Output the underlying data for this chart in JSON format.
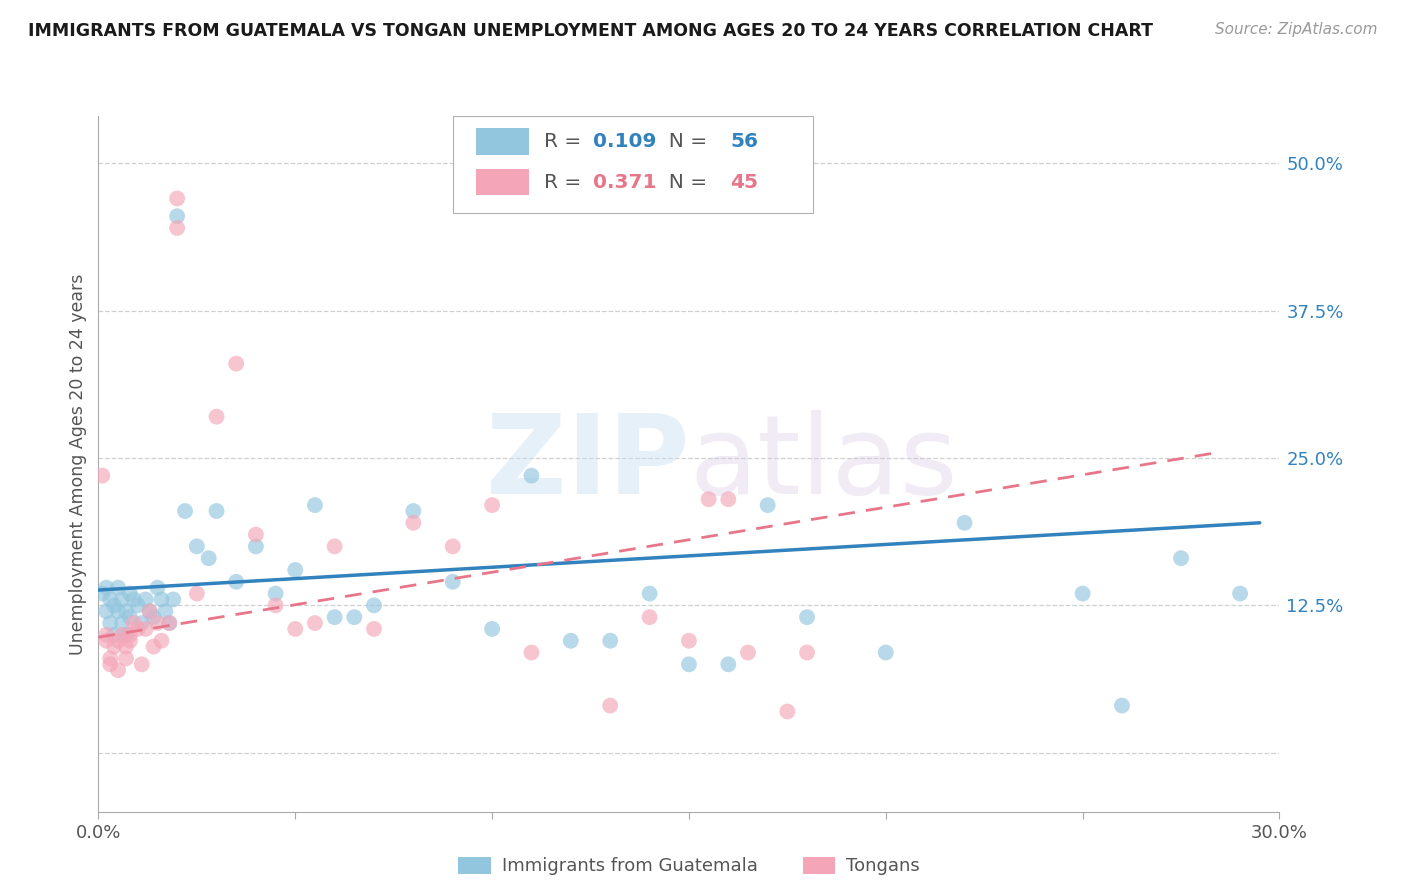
{
  "title": "IMMIGRANTS FROM GUATEMALA VS TONGAN UNEMPLOYMENT AMONG AGES 20 TO 24 YEARS CORRELATION CHART",
  "source": "Source: ZipAtlas.com",
  "ylabel": "Unemployment Among Ages 20 to 24 years",
  "xlim": [
    0.0,
    0.3
  ],
  "ylim": [
    -0.05,
    0.54
  ],
  "x_ticks": [
    0.0,
    0.05,
    0.1,
    0.15,
    0.2,
    0.25,
    0.3
  ],
  "y_ticks_right": [
    0.0,
    0.125,
    0.25,
    0.375,
    0.5
  ],
  "y_tick_labels_right": [
    "",
    "12.5%",
    "25.0%",
    "37.5%",
    "50.0%"
  ],
  "blue_color": "#92c5de",
  "pink_color": "#f4a6b8",
  "blue_line_color": "#3182bd",
  "pink_line_color": "#e8768a",
  "legend_label_blue": "Immigrants from Guatemala",
  "legend_label_pink": "Tongans",
  "R_blue": 0.109,
  "N_blue": 56,
  "R_pink": 0.371,
  "N_pink": 45,
  "watermark_ZIP": "ZIP",
  "watermark_atlas": "atlas",
  "blue_scatter_x": [
    0.001,
    0.002,
    0.002,
    0.003,
    0.003,
    0.004,
    0.004,
    0.005,
    0.005,
    0.006,
    0.006,
    0.007,
    0.007,
    0.008,
    0.008,
    0.009,
    0.01,
    0.011,
    0.012,
    0.013,
    0.014,
    0.015,
    0.016,
    0.017,
    0.018,
    0.019,
    0.02,
    0.022,
    0.025,
    0.028,
    0.03,
    0.035,
    0.04,
    0.045,
    0.05,
    0.055,
    0.06,
    0.065,
    0.07,
    0.08,
    0.09,
    0.1,
    0.11,
    0.12,
    0.13,
    0.14,
    0.15,
    0.16,
    0.17,
    0.18,
    0.2,
    0.22,
    0.25,
    0.26,
    0.275,
    0.29
  ],
  "blue_scatter_y": [
    0.135,
    0.12,
    0.14,
    0.13,
    0.11,
    0.125,
    0.1,
    0.14,
    0.12,
    0.13,
    0.11,
    0.12,
    0.1,
    0.135,
    0.115,
    0.13,
    0.125,
    0.11,
    0.13,
    0.12,
    0.115,
    0.14,
    0.13,
    0.12,
    0.11,
    0.13,
    0.455,
    0.205,
    0.175,
    0.165,
    0.205,
    0.145,
    0.175,
    0.135,
    0.155,
    0.21,
    0.115,
    0.115,
    0.125,
    0.205,
    0.145,
    0.105,
    0.235,
    0.095,
    0.095,
    0.135,
    0.075,
    0.075,
    0.21,
    0.115,
    0.085,
    0.195,
    0.135,
    0.04,
    0.165,
    0.135
  ],
  "pink_scatter_x": [
    0.001,
    0.002,
    0.002,
    0.003,
    0.003,
    0.004,
    0.005,
    0.005,
    0.006,
    0.007,
    0.007,
    0.008,
    0.008,
    0.009,
    0.01,
    0.011,
    0.012,
    0.013,
    0.014,
    0.015,
    0.016,
    0.018,
    0.02,
    0.02,
    0.025,
    0.03,
    0.035,
    0.04,
    0.045,
    0.05,
    0.055,
    0.06,
    0.07,
    0.08,
    0.09,
    0.1,
    0.11,
    0.13,
    0.14,
    0.15,
    0.155,
    0.16,
    0.165,
    0.175,
    0.18
  ],
  "pink_scatter_y": [
    0.235,
    0.1,
    0.095,
    0.08,
    0.075,
    0.09,
    0.095,
    0.07,
    0.1,
    0.09,
    0.08,
    0.1,
    0.095,
    0.11,
    0.105,
    0.075,
    0.105,
    0.12,
    0.09,
    0.11,
    0.095,
    0.11,
    0.445,
    0.47,
    0.135,
    0.285,
    0.33,
    0.185,
    0.125,
    0.105,
    0.11,
    0.175,
    0.105,
    0.195,
    0.175,
    0.21,
    0.085,
    0.04,
    0.115,
    0.095,
    0.215,
    0.215,
    0.085,
    0.035,
    0.085
  ],
  "blue_trend_x": [
    0.0,
    0.295
  ],
  "blue_trend_y": [
    0.138,
    0.195
  ],
  "pink_trend_x": [
    0.0,
    0.285
  ],
  "pink_trend_y": [
    0.098,
    0.255
  ],
  "grid_color": "#d0d0d0",
  "background_color": "#ffffff"
}
